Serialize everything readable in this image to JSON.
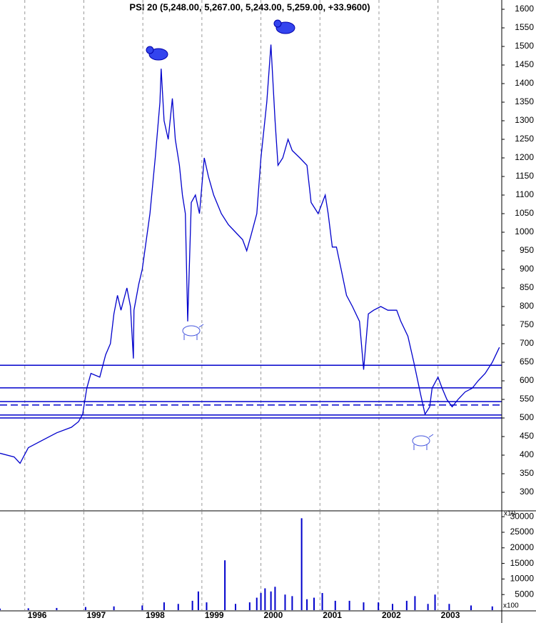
{
  "chart_data": [
    {
      "type": "line",
      "title": "PSI 20 (5,248.00, 5,267.00, 5,243.00, 5,259.00, +33.9600)",
      "x": [
        1995.58,
        1995.82,
        1995.92,
        1996.06,
        1996.3,
        1996.54,
        1996.79,
        1996.91,
        1996.98,
        1997.05,
        1997.12,
        1997.27,
        1997.37,
        1997.45,
        1997.51,
        1997.57,
        1997.63,
        1997.73,
        1997.79,
        1997.84,
        1997.85,
        1997.93,
        1997.99,
        1998.12,
        1998.21,
        1998.29,
        1998.31,
        1998.36,
        1998.43,
        1998.5,
        1998.55,
        1998.62,
        1998.67,
        1998.72,
        1998.76,
        1998.82,
        1998.89,
        1998.96,
        1999.04,
        1999.11,
        1999.2,
        1999.33,
        1999.45,
        1999.57,
        1999.69,
        1999.76,
        1999.83,
        1999.93,
        2000.0,
        2000.1,
        2000.17,
        2000.24,
        2000.29,
        2000.37,
        2000.46,
        2000.53,
        2000.66,
        2000.78,
        2000.85,
        2000.97,
        2001.09,
        2001.14,
        2001.21,
        2001.28,
        2001.36,
        2001.45,
        2001.55,
        2001.67,
        2001.74,
        2001.82,
        2001.91,
        2002.03,
        2002.15,
        2002.3,
        2002.37,
        2002.49,
        2002.59,
        2002.71,
        2002.78,
        2002.86,
        2002.9,
        2003.0,
        2003.07,
        2003.15,
        2003.24,
        2003.34,
        2003.46,
        2003.58,
        2003.68,
        2003.8,
        2003.92,
        2004.04
      ],
      "series": [
        {
          "color": "#0000cc",
          "values": [
            405,
            395,
            378,
            420,
            440,
            460,
            475,
            490,
            510,
            580,
            620,
            610,
            670,
            700,
            780,
            830,
            790,
            850,
            800,
            660,
            790,
            860,
            900,
            1050,
            1200,
            1350,
            1440,
            1300,
            1250,
            1360,
            1250,
            1180,
            1100,
            1050,
            760,
            1080,
            1100,
            1050,
            1200,
            1150,
            1100,
            1050,
            1020,
            1000,
            980,
            950,
            990,
            1050,
            1200,
            1350,
            1505,
            1300,
            1180,
            1200,
            1250,
            1220,
            1200,
            1180,
            1080,
            1050,
            1100,
            1050,
            960,
            960,
            900,
            830,
            800,
            760,
            630,
            780,
            790,
            800,
            790,
            790,
            760,
            720,
            650,
            560,
            510,
            530,
            580,
            610,
            580,
            550,
            530,
            550,
            570,
            580,
            600,
            620,
            650,
            690
          ]
        }
      ],
      "level_lines": [
        {
          "value": 642,
          "dashed": false
        },
        {
          "value": 581,
          "dashed": false
        },
        {
          "value": 544,
          "dashed": false
        },
        {
          "value": 535,
          "dashed": true
        },
        {
          "value": 508,
          "dashed": false
        },
        {
          "value": 500,
          "dashed": false
        }
      ],
      "xlim": [
        1995.58,
        2004.08
      ],
      "xticks": [
        1996,
        1997,
        1998,
        1999,
        2000,
        2001,
        2002,
        2003
      ],
      "ylim": [
        252,
        1625
      ],
      "yticks": [
        300,
        350,
        400,
        450,
        500,
        550,
        600,
        650,
        700,
        750,
        800,
        850,
        900,
        950,
        1000,
        1050,
        1100,
        1150,
        1200,
        1250,
        1300,
        1350,
        1400,
        1450,
        1500,
        1550,
        1600
      ]
    },
    {
      "type": "bar",
      "color": "#0000cc",
      "x": [
        1995.58,
        1996.06,
        1996.54,
        1997.03,
        1997.51,
        1997.99,
        1998.36,
        1998.6,
        1998.84,
        1998.94,
        1999.08,
        1999.39,
        1999.57,
        1999.81,
        1999.93,
        2000.0,
        2000.07,
        2000.17,
        2000.24,
        2000.41,
        2000.53,
        2000.69,
        2000.78,
        2000.9,
        2001.04,
        2001.26,
        2001.5,
        2001.74,
        2001.99,
        2002.23,
        2002.47,
        2002.61,
        2002.83,
        2002.95,
        2003.19,
        2003.56,
        2003.92
      ],
      "values": [
        500,
        600,
        700,
        1000,
        1200,
        1500,
        2500,
        2000,
        3000,
        6000,
        2500,
        16000,
        2000,
        2500,
        4000,
        5500,
        7000,
        6000,
        7500,
        5000,
        4500,
        29500,
        3500,
        4000,
        5500,
        3000,
        3000,
        2500,
        2500,
        2000,
        3000,
        4500,
        2000,
        5000,
        2000,
        1500,
        1200
      ],
      "axis_annotations": [
        "x10",
        "x100"
      ],
      "xlim": [
        1995.58,
        2004.08
      ],
      "xticks": [
        1996,
        1997,
        1998,
        1999,
        2000,
        2001,
        2002,
        2003
      ],
      "ylim": [
        0,
        31650
      ],
      "yticks": [
        5000,
        10000,
        15000,
        20000,
        25000,
        30000
      ]
    }
  ]
}
